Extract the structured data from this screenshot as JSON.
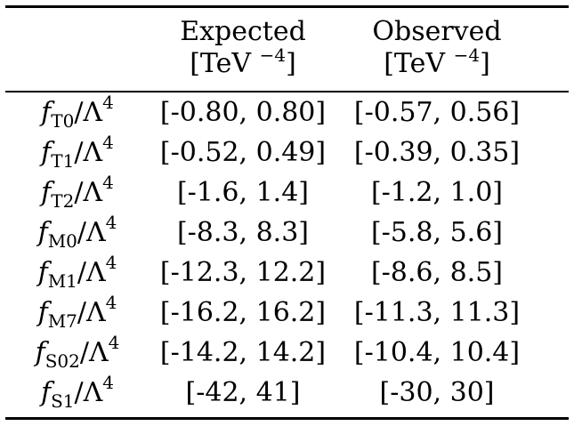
{
  "header": {
    "expected_label": "Expected",
    "observed_label": "Observed",
    "unit_base": "[TeV",
    "unit_exp": "−4",
    "unit_close": "]"
  },
  "rows": [
    {
      "sym": "f",
      "sub": "T0",
      "denom": "/Λ",
      "pow": "4",
      "expected": "[-0.80, 0.80]",
      "observed": "[-0.57, 0.56]"
    },
    {
      "sym": "f",
      "sub": "T1",
      "denom": "/Λ",
      "pow": "4",
      "expected": "[-0.52, 0.49]",
      "observed": "[-0.39, 0.35]"
    },
    {
      "sym": "f",
      "sub": "T2",
      "denom": "/Λ",
      "pow": "4",
      "expected": "[-1.6, 1.4]",
      "observed": "[-1.2, 1.0]"
    },
    {
      "sym": "f",
      "sub": "M0",
      "denom": "/Λ",
      "pow": "4",
      "expected": "[-8.3, 8.3]",
      "observed": "[-5.8, 5.6]"
    },
    {
      "sym": "f",
      "sub": "M1",
      "denom": "/Λ",
      "pow": "4",
      "expected": "[-12.3, 12.2]",
      "observed": "[-8.6, 8.5]"
    },
    {
      "sym": "f",
      "sub": "M7",
      "denom": "/Λ",
      "pow": "4",
      "expected": "[-16.2, 16.2]",
      "observed": "[-11.3, 11.3]"
    },
    {
      "sym": "f",
      "sub": "S02",
      "denom": "/Λ",
      "pow": "4",
      "expected": "[-14.2, 14.2]",
      "observed": "[-10.4, 10.4]"
    },
    {
      "sym": "f",
      "sub": "S1",
      "denom": "/Λ",
      "pow": "4",
      "expected": "[-42, 41]",
      "observed": "[-30, 30]"
    }
  ]
}
